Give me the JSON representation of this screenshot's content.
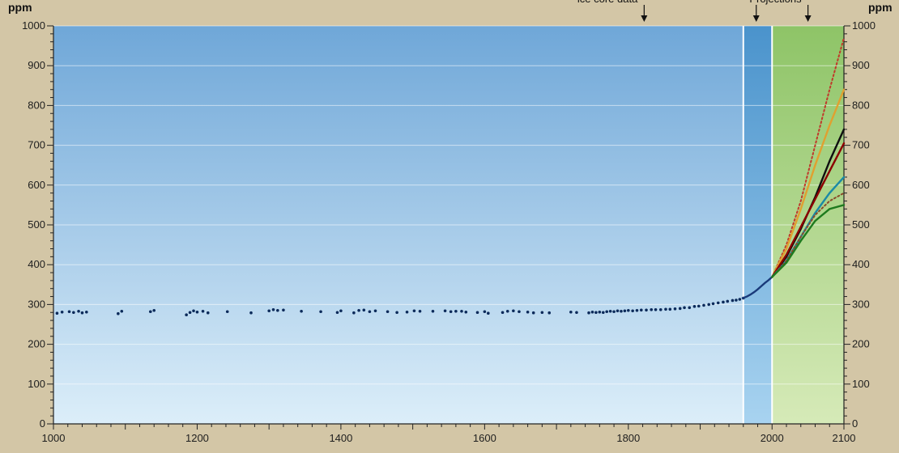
{
  "chart_data": {
    "type": "line",
    "title": "",
    "xlabel": "",
    "ylabel": "ppm",
    "ylabel_right": "ppm",
    "xlim": [
      1000,
      2100
    ],
    "ylim": [
      0,
      1000
    ],
    "x_ticks": [
      1000,
      1200,
      1400,
      1600,
      1800,
      2000,
      2100
    ],
    "y_ticks": [
      0,
      100,
      200,
      300,
      400,
      500,
      600,
      700,
      800,
      900,
      1000
    ],
    "grid": "horizontal",
    "callouts": [
      {
        "text": "ice core data",
        "x": 1822
      },
      {
        "text": "",
        "x": 1978
      },
      {
        "text": "Projections",
        "x": 2050
      }
    ],
    "periods": [
      {
        "start": 1000,
        "end": 1960,
        "color": "#79acd9"
      },
      {
        "start": 1960,
        "end": 2000,
        "color": "#4a93cc"
      },
      {
        "start": 2000,
        "end": 2100,
        "color": "#93c46e"
      }
    ],
    "ice_core_points": [
      [
        1005,
        278
      ],
      [
        1012,
        281
      ],
      [
        1022,
        282
      ],
      [
        1028,
        280
      ],
      [
        1035,
        283
      ],
      [
        1040,
        279
      ],
      [
        1046,
        281
      ],
      [
        1090,
        277
      ],
      [
        1095,
        283
      ],
      [
        1135,
        282
      ],
      [
        1140,
        285
      ],
      [
        1185,
        274
      ],
      [
        1190,
        280
      ],
      [
        1195,
        284
      ],
      [
        1200,
        281
      ],
      [
        1208,
        283
      ],
      [
        1215,
        279
      ],
      [
        1242,
        282
      ],
      [
        1275,
        279
      ],
      [
        1300,
        284
      ],
      [
        1306,
        287
      ],
      [
        1312,
        285
      ],
      [
        1320,
        286
      ],
      [
        1345,
        283
      ],
      [
        1372,
        282
      ],
      [
        1395,
        280
      ],
      [
        1400,
        284
      ],
      [
        1418,
        279
      ],
      [
        1425,
        285
      ],
      [
        1432,
        286
      ],
      [
        1440,
        282
      ],
      [
        1448,
        284
      ],
      [
        1465,
        282
      ],
      [
        1478,
        280
      ],
      [
        1492,
        281
      ],
      [
        1502,
        284
      ],
      [
        1510,
        283
      ],
      [
        1528,
        283
      ],
      [
        1545,
        284
      ],
      [
        1553,
        282
      ],
      [
        1560,
        283
      ],
      [
        1568,
        283
      ],
      [
        1574,
        281
      ],
      [
        1590,
        280
      ],
      [
        1600,
        282
      ],
      [
        1605,
        278
      ],
      [
        1625,
        280
      ],
      [
        1632,
        283
      ],
      [
        1640,
        284
      ],
      [
        1648,
        282
      ],
      [
        1660,
        281
      ],
      [
        1668,
        279
      ],
      [
        1680,
        280
      ],
      [
        1690,
        279
      ],
      [
        1720,
        281
      ],
      [
        1728,
        280
      ],
      [
        1745,
        279
      ],
      [
        1750,
        281
      ],
      [
        1755,
        280
      ],
      [
        1760,
        281
      ],
      [
        1765,
        280
      ],
      [
        1770,
        282
      ],
      [
        1775,
        283
      ],
      [
        1780,
        282
      ],
      [
        1785,
        284
      ],
      [
        1790,
        283
      ],
      [
        1795,
        284
      ],
      [
        1800,
        285
      ],
      [
        1806,
        284
      ],
      [
        1812,
        285
      ],
      [
        1818,
        286
      ],
      [
        1825,
        286
      ],
      [
        1832,
        287
      ],
      [
        1838,
        287
      ],
      [
        1845,
        287
      ],
      [
        1852,
        288
      ],
      [
        1858,
        288
      ],
      [
        1865,
        289
      ],
      [
        1872,
        290
      ],
      [
        1878,
        292
      ],
      [
        1885,
        292
      ],
      [
        1892,
        295
      ],
      [
        1898,
        296
      ],
      [
        1905,
        298
      ],
      [
        1912,
        300
      ],
      [
        1918,
        302
      ],
      [
        1925,
        304
      ],
      [
        1932,
        306
      ],
      [
        1938,
        308
      ],
      [
        1945,
        310
      ],
      [
        1950,
        311
      ],
      [
        1955,
        313
      ],
      [
        1960,
        316
      ]
    ],
    "measured": {
      "x": [
        1958,
        1965,
        1970,
        1975,
        1980,
        1985,
        1990,
        1995,
        2000
      ],
      "y": [
        315,
        320,
        325,
        331,
        338,
        346,
        354,
        361,
        369
      ]
    },
    "projection_x": [
      2000,
      2020,
      2040,
      2060,
      2080,
      2100
    ],
    "series": [
      {
        "color": "#c0392b",
        "dash": true,
        "y": [
          369,
          450,
          560,
          700,
          840,
          970
        ]
      },
      {
        "color": "#e0a030",
        "dash": false,
        "y": [
          369,
          440,
          540,
          650,
          750,
          840
        ]
      },
      {
        "color": "#101010",
        "dash": false,
        "y": [
          369,
          420,
          490,
          570,
          660,
          740
        ]
      },
      {
        "color": "#8b0000",
        "dash": false,
        "y": [
          369,
          425,
          495,
          565,
          635,
          705
        ]
      },
      {
        "color": "#1a8aa6",
        "dash": false,
        "y": [
          369,
          410,
          470,
          530,
          580,
          620
        ]
      },
      {
        "color": "#8a4a2a",
        "dash": true,
        "y": [
          369,
          410,
          470,
          525,
          560,
          580
        ]
      },
      {
        "color": "#1e7a1e",
        "dash": false,
        "y": [
          369,
          405,
          460,
          510,
          540,
          550
        ]
      }
    ]
  }
}
